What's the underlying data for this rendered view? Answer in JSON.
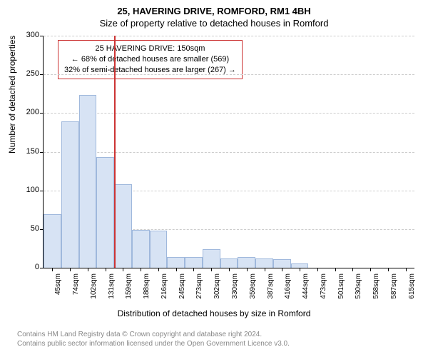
{
  "title_main": "25, HAVERING DRIVE, ROMFORD, RM1 4BH",
  "title_sub": "Size of property relative to detached houses in Romford",
  "y_axis_label": "Number of detached properties",
  "x_axis_label": "Distribution of detached houses by size in Romford",
  "footer_line1": "Contains HM Land Registry data © Crown copyright and database right 2024.",
  "footer_line2": "Contains public sector information licensed under the Open Government Licence v3.0.",
  "annotation": {
    "line1": "25 HAVERING DRIVE: 150sqm",
    "line2": "← 68% of detached houses are smaller (569)",
    "line3": "32% of semi-detached houses are larger (267) →",
    "border_color": "#cc3333"
  },
  "chart": {
    "type": "histogram",
    "background_color": "#ffffff",
    "grid_color": "#cccccc",
    "bar_fill": "#d7e3f4",
    "bar_stroke": "#9fb8dc",
    "reference_line_color": "#cc3333",
    "reference_index": 4,
    "ylim": [
      0,
      300
    ],
    "ytick_step": 50,
    "categories": [
      "45sqm",
      "74sqm",
      "102sqm",
      "131sqm",
      "159sqm",
      "188sqm",
      "216sqm",
      "245sqm",
      "273sqm",
      "302sqm",
      "330sqm",
      "359sqm",
      "387sqm",
      "416sqm",
      "444sqm",
      "473sqm",
      "501sqm",
      "530sqm",
      "558sqm",
      "587sqm",
      "615sqm"
    ],
    "values": [
      69,
      189,
      223,
      143,
      108,
      49,
      48,
      14,
      14,
      24,
      12,
      14,
      12,
      11,
      6,
      0,
      0,
      0,
      0,
      0,
      0
    ],
    "bar_width_ratio": 1.0,
    "title_fontsize": 13,
    "label_fontsize": 12,
    "tick_fontsize": 10
  }
}
